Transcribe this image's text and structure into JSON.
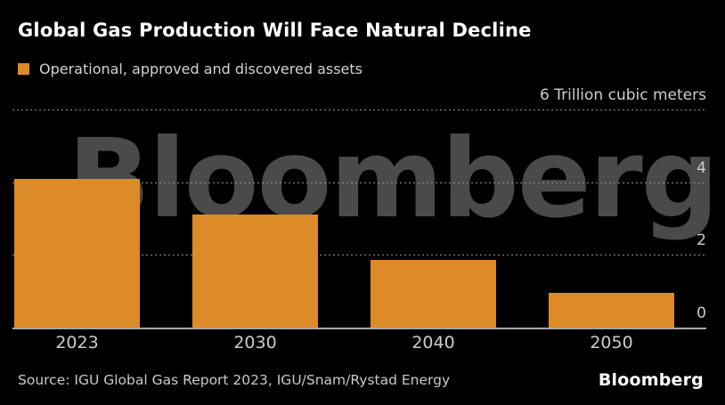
{
  "header": {
    "title": "Global Gas Production Will Face Natural Decline",
    "legend_label": "Operational, approved and discovered assets"
  },
  "watermark": "Bloomberg",
  "chart_data": {
    "type": "bar",
    "title": "Global Gas Production Will Face Natural Decline",
    "legend": [
      "Operational, approved and discovered assets"
    ],
    "categories": [
      "2023",
      "2030",
      "2040",
      "2050"
    ],
    "values": [
      4.1,
      3.1,
      1.85,
      0.95
    ],
    "unit_label": "6 Trillion cubic meters",
    "ylim": [
      0,
      6
    ],
    "yticks": [
      {
        "value": 6,
        "label": "6 Trillion cubic meters"
      },
      {
        "value": 4,
        "label": "4"
      },
      {
        "value": 2,
        "label": "2"
      },
      {
        "value": 0,
        "label": "0"
      }
    ],
    "grid": "dotted-horizontal",
    "legend_position": "top-left",
    "axis_labels_position": "right"
  },
  "colors": {
    "background": "#000000",
    "bar": "#DD8A28",
    "title_text": "#FFFFFF",
    "muted_text": "#CCCCCC",
    "gridline": "#8F8F8F",
    "baseline": "#A8A8A8",
    "watermark": "rgba(255,255,255,0.29)"
  },
  "footer": {
    "source": "Source: IGU Global Gas Report 2023, IGU/Snam/Rystad Energy",
    "logo": "Bloomberg"
  }
}
